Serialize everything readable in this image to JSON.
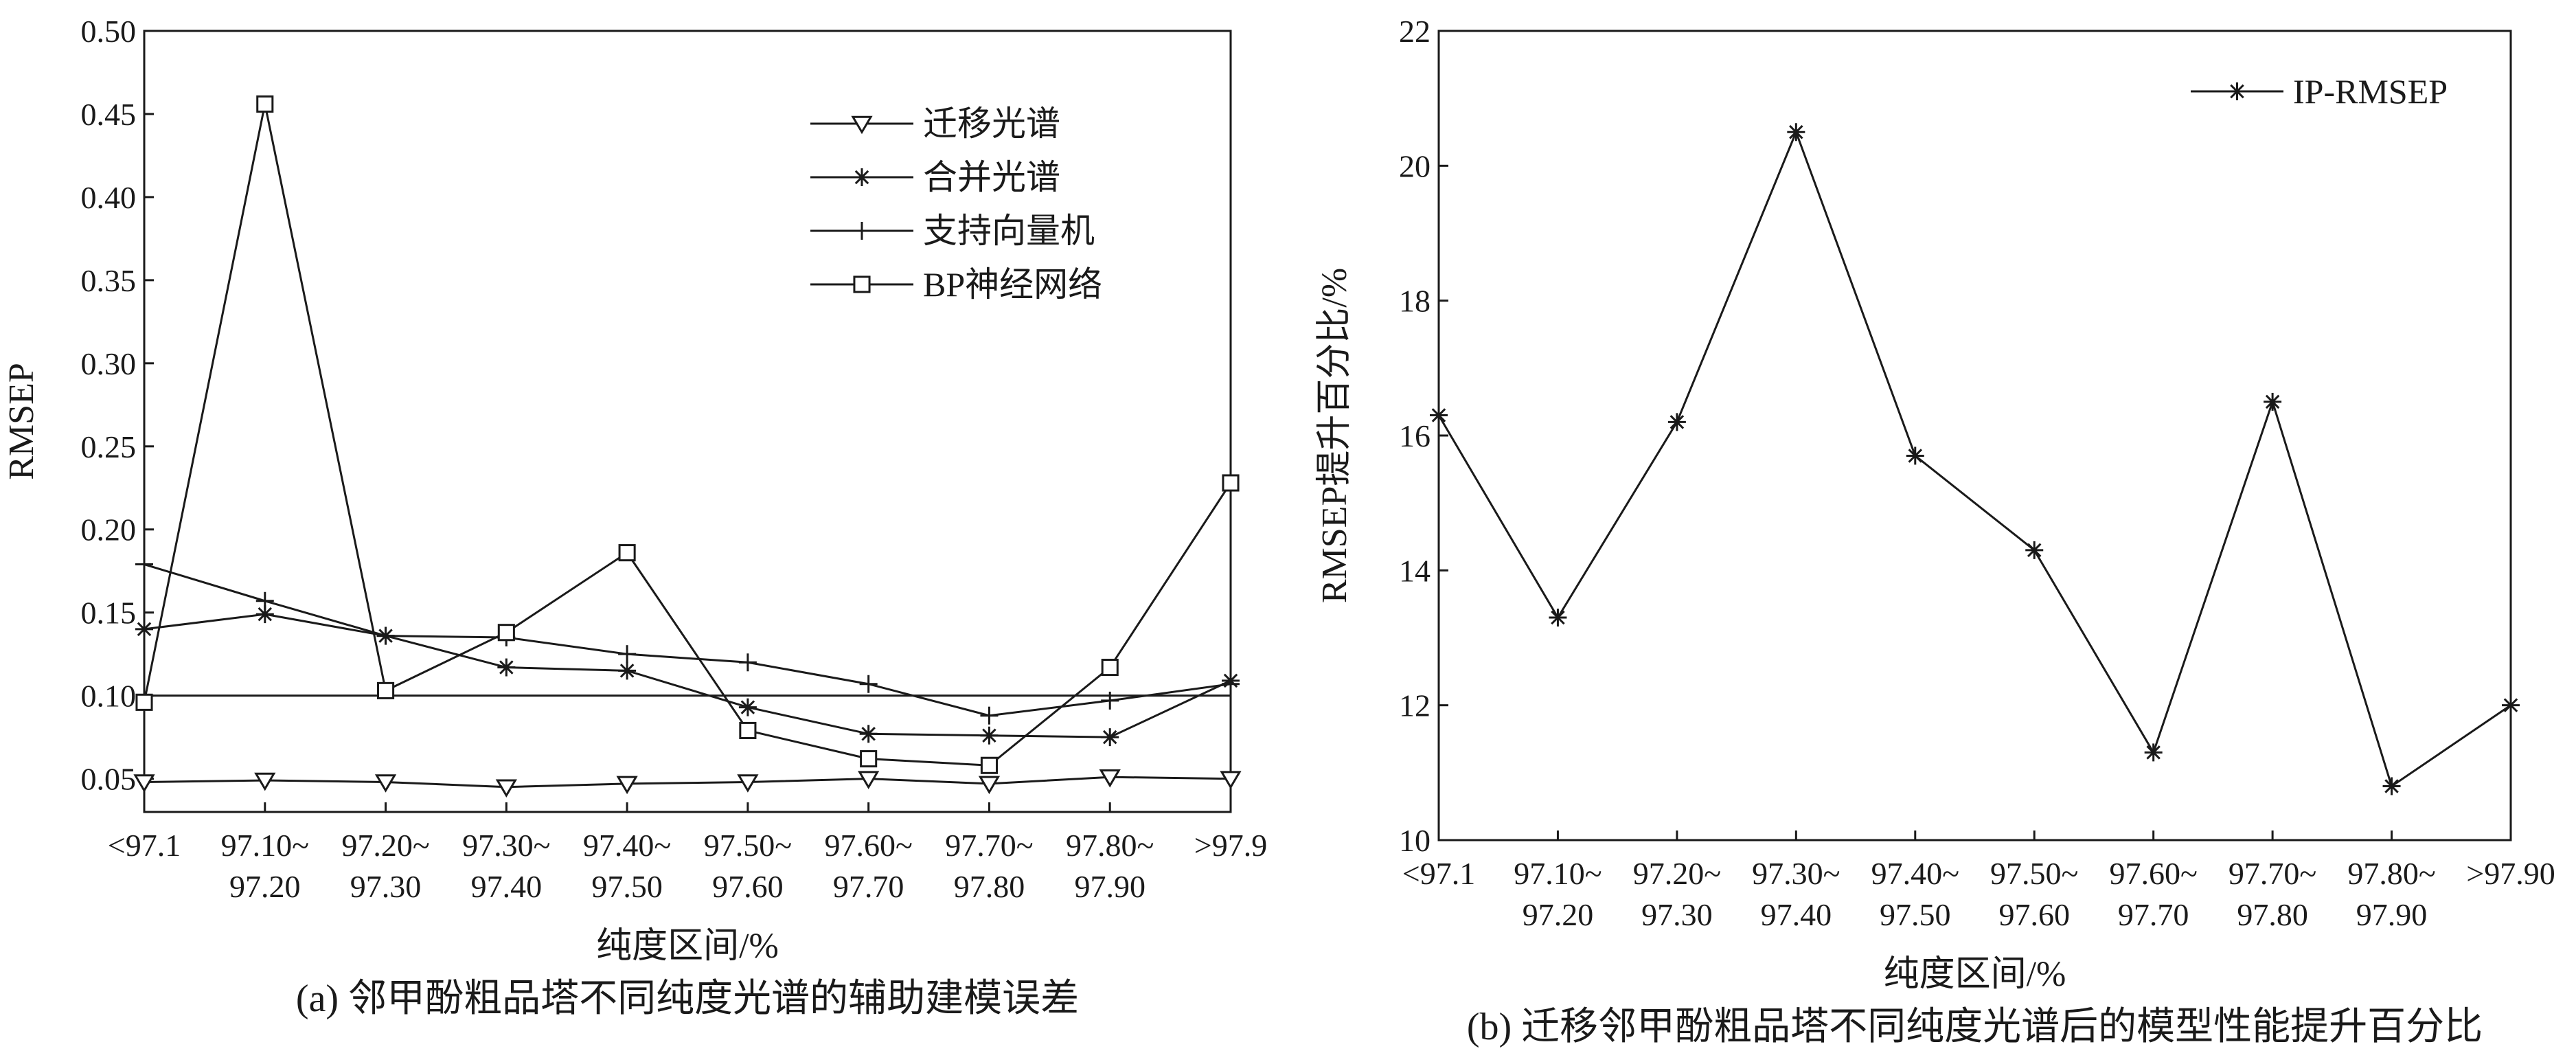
{
  "chart_data": [
    {
      "type": "line",
      "title": "",
      "caption": "(a) 邻甲酚粗品塔不同纯度光谱的辅助建模误差",
      "xlabel": "纯度区间/%",
      "ylabel": "RMSEP",
      "ylim": [
        0.03,
        0.5
      ],
      "yticks": [
        "0.05",
        "0.10",
        "0.15",
        "0.20",
        "0.25",
        "0.30",
        "0.35",
        "0.40",
        "0.45",
        "0.50"
      ],
      "ytick_values": [
        0.05,
        0.1,
        0.15,
        0.2,
        0.25,
        0.3,
        0.35,
        0.4,
        0.45,
        0.5
      ],
      "categories": [
        [
          "<97.1",
          ""
        ],
        [
          "97.10~",
          "97.20"
        ],
        [
          "97.20~",
          "97.30"
        ],
        [
          "97.30~",
          "97.40"
        ],
        [
          "97.40~",
          "97.50"
        ],
        [
          "97.50~",
          "97.60"
        ],
        [
          "97.60~",
          "97.70"
        ],
        [
          "97.70~",
          "97.80"
        ],
        [
          "97.80~",
          "97.90"
        ],
        [
          ">97.9",
          ""
        ]
      ],
      "legend_position": "top-right",
      "hline": 0.1,
      "series": [
        {
          "name": "迁移光谱",
          "marker": "triangle-down",
          "values": [
            0.048,
            0.049,
            0.048,
            0.045,
            0.047,
            0.048,
            0.05,
            0.047,
            0.051,
            0.05
          ]
        },
        {
          "name": "合并光谱",
          "marker": "star",
          "values": [
            0.14,
            0.149,
            0.136,
            0.117,
            0.115,
            0.093,
            0.077,
            0.076,
            0.075,
            0.109
          ]
        },
        {
          "name": "支持向量机",
          "marker": "plus",
          "values": [
            0.179,
            0.157,
            0.136,
            0.135,
            0.125,
            0.12,
            0.107,
            0.088,
            0.097,
            0.107
          ]
        },
        {
          "name": "BP神经网络",
          "marker": "square",
          "values": [
            0.096,
            0.456,
            0.103,
            0.138,
            0.186,
            0.079,
            0.062,
            0.058,
            0.117,
            0.228
          ]
        }
      ]
    },
    {
      "type": "line",
      "title": "",
      "caption": "(b) 迁移邻甲酚粗品塔不同纯度光谱后的模型性能提升百分比",
      "xlabel": "纯度区间/%",
      "ylabel": "RMSEP提升百分比/%",
      "ylim": [
        10,
        22
      ],
      "yticks": [
        "10",
        "12",
        "14",
        "16",
        "18",
        "20",
        "22"
      ],
      "ytick_values": [
        10,
        12,
        14,
        16,
        18,
        20,
        22
      ],
      "categories": [
        [
          "<97.1",
          ""
        ],
        [
          "97.10~",
          "97.20"
        ],
        [
          "97.20~",
          "97.30"
        ],
        [
          "97.30~",
          "97.40"
        ],
        [
          "97.40~",
          "97.50"
        ],
        [
          "97.50~",
          "97.60"
        ],
        [
          "97.60~",
          "97.70"
        ],
        [
          "97.70~",
          "97.80"
        ],
        [
          "97.80~",
          "97.90"
        ],
        [
          ">97.90",
          ""
        ]
      ],
      "legend_position": "top-right",
      "series": [
        {
          "name": "IP-RMSEP",
          "marker": "star",
          "values": [
            16.3,
            13.3,
            16.2,
            20.5,
            15.7,
            14.3,
            11.3,
            16.5,
            10.8,
            12.0
          ]
        }
      ]
    }
  ]
}
